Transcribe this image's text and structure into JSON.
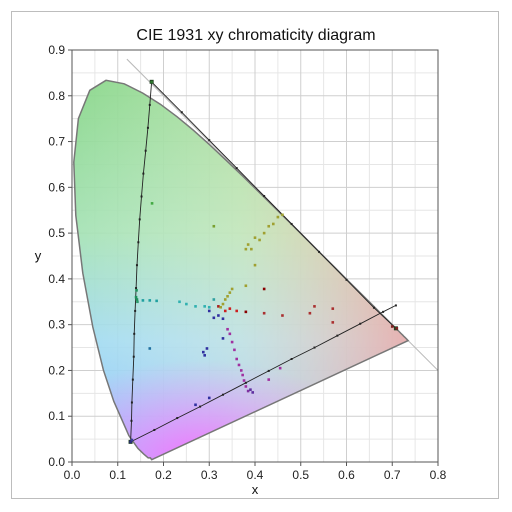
{
  "chart_data": {
    "type": "scatter",
    "title": "CIE 1931 xy chromaticity diagram",
    "xlabel": "x",
    "ylabel": "y",
    "xlim": [
      0.0,
      0.8
    ],
    "ylim": [
      0.0,
      0.9
    ],
    "x_ticks": [
      "0.0",
      "0.1",
      "0.2",
      "0.3",
      "0.4",
      "0.5",
      "0.6",
      "0.7",
      "0.8"
    ],
    "y_ticks": [
      "0.0",
      "0.1",
      "0.2",
      "0.3",
      "0.4",
      "0.5",
      "0.6",
      "0.7",
      "0.8",
      "0.9"
    ],
    "grid": true,
    "spectral_locus": [
      [
        0.1741,
        0.005
      ],
      [
        0.1714,
        0.009
      ],
      [
        0.1666,
        0.0089
      ],
      [
        0.1566,
        0.0177
      ],
      [
        0.144,
        0.0297
      ],
      [
        0.1241,
        0.0578
      ],
      [
        0.0913,
        0.1327
      ],
      [
        0.0687,
        0.2007
      ],
      [
        0.0454,
        0.295
      ],
      [
        0.0235,
        0.4127
      ],
      [
        0.0082,
        0.5384
      ],
      [
        0.0039,
        0.6548
      ],
      [
        0.0139,
        0.7502
      ],
      [
        0.0389,
        0.812
      ],
      [
        0.0743,
        0.8338
      ],
      [
        0.1142,
        0.8262
      ],
      [
        0.1547,
        0.8059
      ],
      [
        0.1929,
        0.7816
      ],
      [
        0.2296,
        0.7543
      ],
      [
        0.2658,
        0.7243
      ],
      [
        0.3016,
        0.6923
      ],
      [
        0.3373,
        0.6589
      ],
      [
        0.3731,
        0.6245
      ],
      [
        0.4087,
        0.5896
      ],
      [
        0.4441,
        0.5547
      ],
      [
        0.4788,
        0.5202
      ],
      [
        0.5125,
        0.4866
      ],
      [
        0.5448,
        0.4544
      ],
      [
        0.5752,
        0.4242
      ],
      [
        0.6029,
        0.3965
      ],
      [
        0.627,
        0.3725
      ],
      [
        0.6482,
        0.3514
      ],
      [
        0.6658,
        0.334
      ],
      [
        0.6801,
        0.3197
      ],
      [
        0.6915,
        0.3083
      ],
      [
        0.7006,
        0.2993
      ],
      [
        0.7079,
        0.292
      ],
      [
        0.714,
        0.2859
      ],
      [
        0.719,
        0.2809
      ],
      [
        0.723,
        0.277
      ],
      [
        0.726,
        0.274
      ],
      [
        0.7283,
        0.2717
      ],
      [
        0.73,
        0.27
      ],
      [
        0.7311,
        0.2689
      ],
      [
        0.732,
        0.268
      ],
      [
        0.7347,
        0.2653
      ]
    ],
    "reference_line": [
      [
        0.12,
        0.88
      ],
      [
        0.8,
        0.2
      ]
    ],
    "gamut_triangle": [
      [
        0.1741,
        0.8305
      ],
      [
        0.708,
        0.292
      ],
      [
        0.128,
        0.044
      ]
    ],
    "line_series": [
      {
        "points": [
          [
            0.128,
            0.044
          ],
          [
            0.13,
            0.09
          ],
          [
            0.131,
            0.13
          ],
          [
            0.133,
            0.18
          ],
          [
            0.135,
            0.23
          ],
          [
            0.136,
            0.28
          ],
          [
            0.138,
            0.33
          ],
          [
            0.14,
            0.38
          ],
          [
            0.142,
            0.43
          ],
          [
            0.145,
            0.48
          ],
          [
            0.148,
            0.53
          ],
          [
            0.152,
            0.58
          ],
          [
            0.156,
            0.63
          ],
          [
            0.161,
            0.68
          ],
          [
            0.166,
            0.73
          ],
          [
            0.17,
            0.78
          ],
          [
            0.174,
            0.83
          ]
        ]
      },
      {
        "points": [
          [
            0.128,
            0.044
          ],
          [
            0.18,
            0.07
          ],
          [
            0.23,
            0.096
          ],
          [
            0.28,
            0.121
          ],
          [
            0.33,
            0.147
          ],
          [
            0.38,
            0.173
          ],
          [
            0.43,
            0.199
          ],
          [
            0.48,
            0.225
          ],
          [
            0.53,
            0.25
          ],
          [
            0.58,
            0.276
          ],
          [
            0.63,
            0.302
          ],
          [
            0.68,
            0.328
          ],
          [
            0.708,
            0.342
          ]
        ]
      },
      {
        "points": [
          [
            0.174,
            0.83
          ],
          [
            0.24,
            0.764
          ],
          [
            0.3,
            0.703
          ],
          [
            0.36,
            0.642
          ],
          [
            0.42,
            0.581
          ],
          [
            0.48,
            0.52
          ],
          [
            0.54,
            0.459
          ],
          [
            0.6,
            0.398
          ],
          [
            0.66,
            0.337
          ],
          [
            0.708,
            0.292
          ]
        ]
      }
    ],
    "scatter_points": [
      {
        "x": 0.128,
        "y": 0.044,
        "color": "#2a2a80"
      },
      {
        "x": 0.131,
        "y": 0.048,
        "color": "#3a3a9a"
      },
      {
        "x": 0.174,
        "y": 0.83,
        "color": "#2f7a2f"
      },
      {
        "x": 0.71,
        "y": 0.292,
        "color": "#802020"
      },
      {
        "x": 0.7,
        "y": 0.296,
        "color": "#802020"
      },
      {
        "x": 0.14,
        "y": 0.36,
        "color": "#1e8f5a"
      },
      {
        "x": 0.142,
        "y": 0.355,
        "color": "#1e8f5a"
      },
      {
        "x": 0.141,
        "y": 0.375,
        "color": "#1e8f5a"
      },
      {
        "x": 0.143,
        "y": 0.35,
        "color": "#2a9a6a"
      },
      {
        "x": 0.155,
        "y": 0.353,
        "color": "#20a0a0"
      },
      {
        "x": 0.17,
        "y": 0.353,
        "color": "#20a0a0"
      },
      {
        "x": 0.185,
        "y": 0.352,
        "color": "#20a0a0"
      },
      {
        "x": 0.175,
        "y": 0.565,
        "color": "#44aa44"
      },
      {
        "x": 0.17,
        "y": 0.248,
        "color": "#2070a0"
      },
      {
        "x": 0.235,
        "y": 0.35,
        "color": "#30b0b0"
      },
      {
        "x": 0.25,
        "y": 0.345,
        "color": "#30b0b0"
      },
      {
        "x": 0.27,
        "y": 0.34,
        "color": "#30b0b0"
      },
      {
        "x": 0.29,
        "y": 0.34,
        "color": "#30b0b0"
      },
      {
        "x": 0.3,
        "y": 0.338,
        "color": "#30b0b0"
      },
      {
        "x": 0.31,
        "y": 0.515,
        "color": "#7aa030"
      },
      {
        "x": 0.3,
        "y": 0.33,
        "color": "#3030a0"
      },
      {
        "x": 0.31,
        "y": 0.315,
        "color": "#3030a0"
      },
      {
        "x": 0.32,
        "y": 0.32,
        "color": "#3030a0"
      },
      {
        "x": 0.33,
        "y": 0.313,
        "color": "#3030a0"
      },
      {
        "x": 0.32,
        "y": 0.34,
        "color": "#aa2020"
      },
      {
        "x": 0.335,
        "y": 0.33,
        "color": "#cc2020"
      },
      {
        "x": 0.345,
        "y": 0.335,
        "color": "#cc2020"
      },
      {
        "x": 0.36,
        "y": 0.33,
        "color": "#cc2020"
      },
      {
        "x": 0.38,
        "y": 0.328,
        "color": "#880000"
      },
      {
        "x": 0.33,
        "y": 0.345,
        "color": "#a0a030"
      },
      {
        "x": 0.335,
        "y": 0.355,
        "color": "#a0a030"
      },
      {
        "x": 0.34,
        "y": 0.362,
        "color": "#a0a030"
      },
      {
        "x": 0.345,
        "y": 0.37,
        "color": "#a0a030"
      },
      {
        "x": 0.35,
        "y": 0.378,
        "color": "#a0a030"
      },
      {
        "x": 0.325,
        "y": 0.338,
        "color": "#a0a030"
      },
      {
        "x": 0.38,
        "y": 0.465,
        "color": "#a0a030"
      },
      {
        "x": 0.385,
        "y": 0.475,
        "color": "#a0a030"
      },
      {
        "x": 0.392,
        "y": 0.465,
        "color": "#a0a030"
      },
      {
        "x": 0.4,
        "y": 0.49,
        "color": "#a0a030"
      },
      {
        "x": 0.41,
        "y": 0.485,
        "color": "#a0a030"
      },
      {
        "x": 0.42,
        "y": 0.5,
        "color": "#a0a030"
      },
      {
        "x": 0.43,
        "y": 0.515,
        "color": "#a0a030"
      },
      {
        "x": 0.44,
        "y": 0.52,
        "color": "#a0a030"
      },
      {
        "x": 0.45,
        "y": 0.535,
        "color": "#a0a030"
      },
      {
        "x": 0.46,
        "y": 0.54,
        "color": "#a0a030"
      },
      {
        "x": 0.4,
        "y": 0.43,
        "color": "#a0a030"
      },
      {
        "x": 0.38,
        "y": 0.385,
        "color": "#a0a030"
      },
      {
        "x": 0.42,
        "y": 0.378,
        "color": "#880000"
      },
      {
        "x": 0.46,
        "y": 0.32,
        "color": "#aa3030"
      },
      {
        "x": 0.52,
        "y": 0.325,
        "color": "#aa3030"
      },
      {
        "x": 0.53,
        "y": 0.34,
        "color": "#aa3030"
      },
      {
        "x": 0.57,
        "y": 0.335,
        "color": "#aa3030"
      },
      {
        "x": 0.57,
        "y": 0.305,
        "color": "#aa3030"
      },
      {
        "x": 0.42,
        "y": 0.325,
        "color": "#aa3030"
      },
      {
        "x": 0.34,
        "y": 0.29,
        "color": "#a030a0"
      },
      {
        "x": 0.345,
        "y": 0.28,
        "color": "#a030a0"
      },
      {
        "x": 0.35,
        "y": 0.262,
        "color": "#a030a0"
      },
      {
        "x": 0.355,
        "y": 0.245,
        "color": "#a030a0"
      },
      {
        "x": 0.36,
        "y": 0.225,
        "color": "#a030a0"
      },
      {
        "x": 0.365,
        "y": 0.212,
        "color": "#a030a0"
      },
      {
        "x": 0.37,
        "y": 0.2,
        "color": "#a030a0"
      },
      {
        "x": 0.373,
        "y": 0.19,
        "color": "#a030a0"
      },
      {
        "x": 0.376,
        "y": 0.178,
        "color": "#a030a0"
      },
      {
        "x": 0.38,
        "y": 0.165,
        "color": "#a030a0"
      },
      {
        "x": 0.385,
        "y": 0.155,
        "color": "#8030a0"
      },
      {
        "x": 0.39,
        "y": 0.158,
        "color": "#6030a0"
      },
      {
        "x": 0.395,
        "y": 0.152,
        "color": "#6030a0"
      },
      {
        "x": 0.287,
        "y": 0.24,
        "color": "#3030a0"
      },
      {
        "x": 0.29,
        "y": 0.233,
        "color": "#3030a0"
      },
      {
        "x": 0.295,
        "y": 0.248,
        "color": "#3030a0"
      },
      {
        "x": 0.33,
        "y": 0.27,
        "color": "#3030a0"
      },
      {
        "x": 0.31,
        "y": 0.355,
        "color": "#30a0a0"
      },
      {
        "x": 0.455,
        "y": 0.205,
        "color": "#a030a0"
      },
      {
        "x": 0.43,
        "y": 0.18,
        "color": "#a030a0"
      },
      {
        "x": 0.27,
        "y": 0.125,
        "color": "#3030a0"
      },
      {
        "x": 0.3,
        "y": 0.14,
        "color": "#3030a0"
      }
    ]
  }
}
